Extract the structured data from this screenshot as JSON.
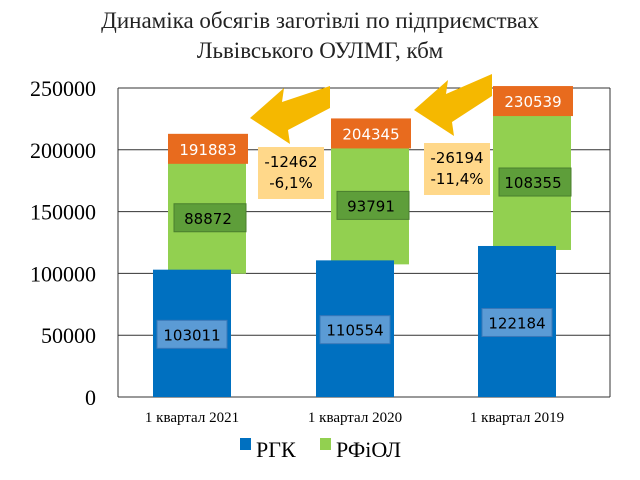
{
  "chart_data": {
    "type": "bar",
    "stacked": true,
    "title_lines": [
      "Динаміка обсягів заготівлі по підприємствах",
      "Львівського ОУЛМГ, кбм"
    ],
    "categories": [
      "1 квартал 2021",
      "1 квартал 2020",
      "1 квартал 2019"
    ],
    "series": [
      {
        "name": "РГК",
        "values": [
          103011,
          110554,
          122184
        ],
        "color": "#0070C0"
      },
      {
        "name": "РФіОЛ",
        "values": [
          88872,
          93791,
          108355
        ],
        "color": "#92D050"
      }
    ],
    "totals": [
      191883,
      204345,
      230539
    ],
    "changes": [
      {
        "abs": "-12462",
        "pct": "-6,1%"
      },
      {
        "abs": "-26194",
        "pct": "-11,4%"
      }
    ],
    "ylim": [
      0,
      250000
    ],
    "yticks": [
      0,
      50000,
      100000,
      150000,
      200000,
      250000
    ],
    "grid": true,
    "legend": "bottom",
    "total_color": "#E86B1E",
    "change_color": "#FFD88A",
    "arrow_color": "#F5B800"
  }
}
